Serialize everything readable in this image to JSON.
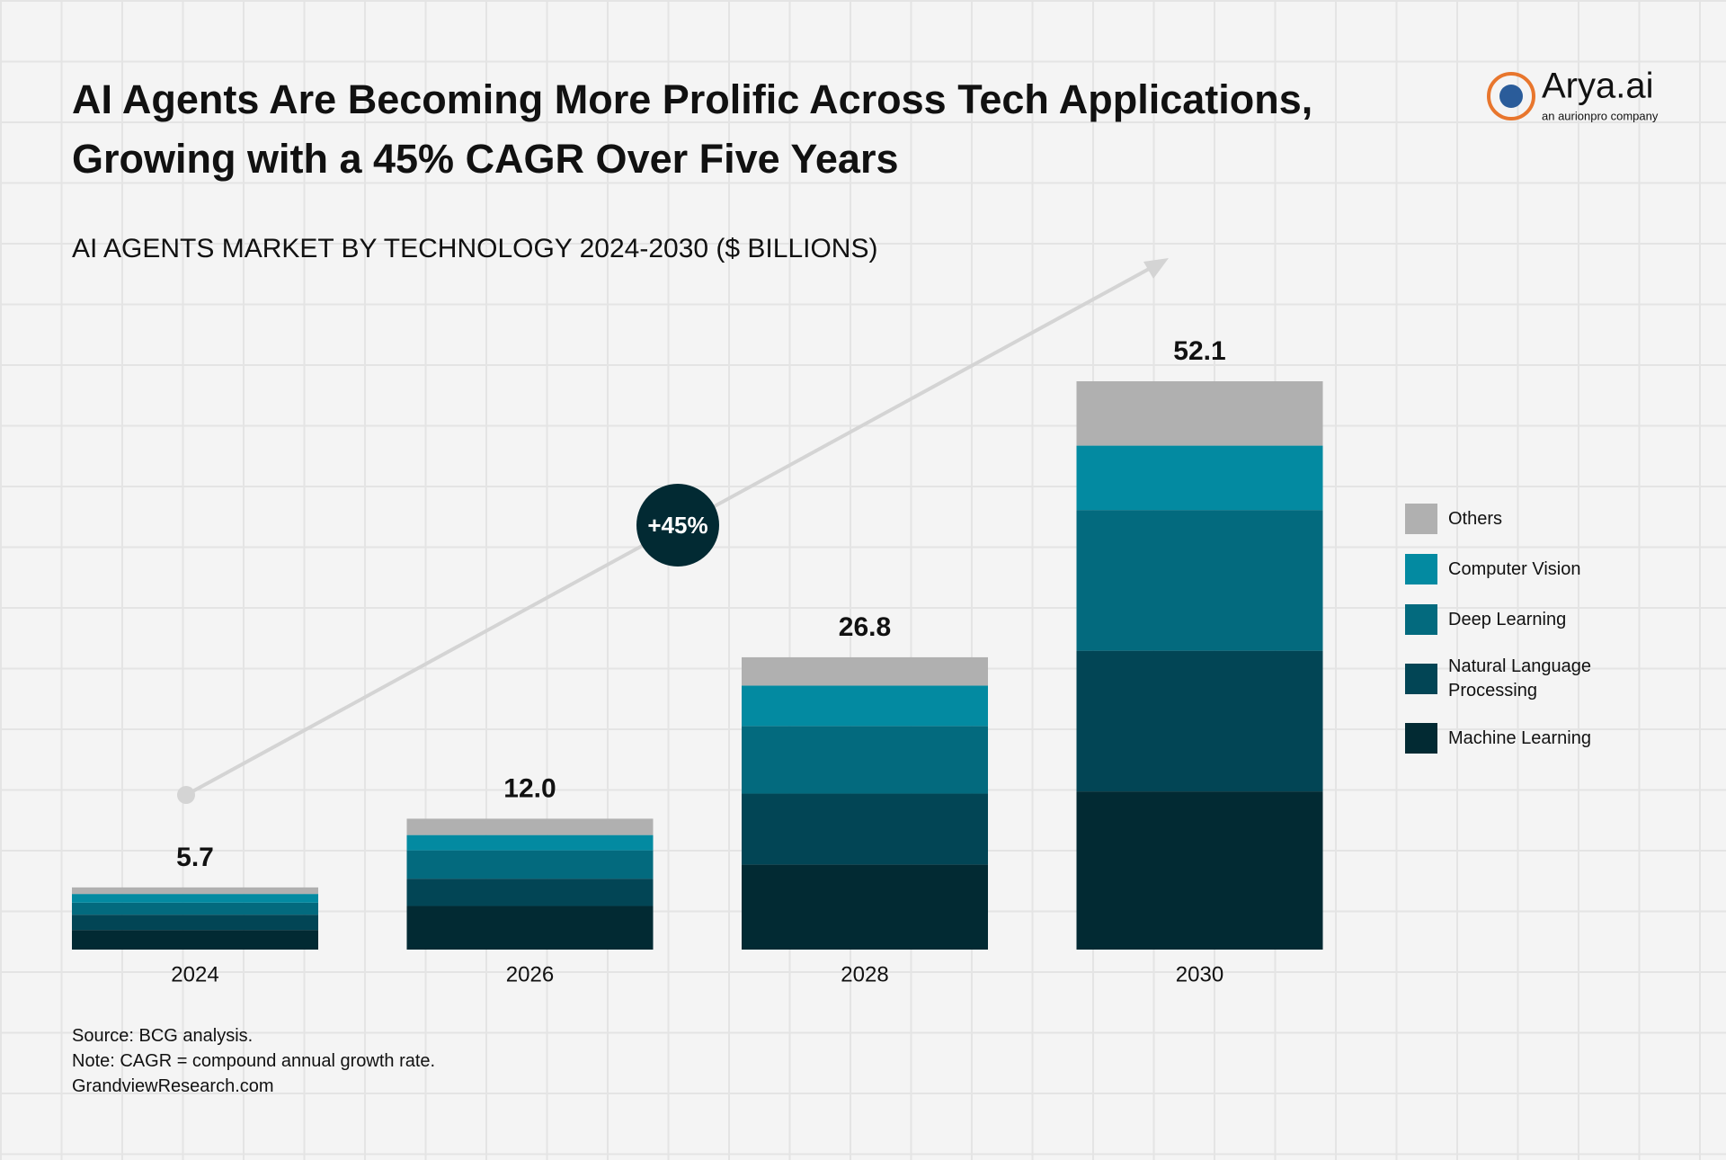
{
  "chart_data": {
    "type": "bar",
    "stacked": true,
    "title": [
      "AI Agents Are Becoming More Prolific Across Tech Applications,",
      "Growing with a 45% CAGR Over Five Years"
    ],
    "subtitle": "AI AGENTS MARKET BY TECHNOLOGY 2024-2030 ($ BILLIONS)",
    "categories": [
      "2024",
      "2026",
      "2028",
      "2030"
    ],
    "series": [
      {
        "name": "Machine Learning",
        "color": "#022a33",
        "values": [
          1.8,
          4.0,
          7.8,
          14.5
        ]
      },
      {
        "name": "Natural Language Processing",
        "color": "#024555",
        "values": [
          1.4,
          2.5,
          6.5,
          12.9
        ]
      },
      {
        "name": "Deep Learning",
        "color": "#036a7e",
        "values": [
          1.1,
          2.6,
          6.2,
          12.9
        ]
      },
      {
        "name": "Computer Vision",
        "color": "#038aa1",
        "values": [
          0.8,
          1.4,
          3.7,
          5.9
        ]
      },
      {
        "name": "Others",
        "color": "#b0b0b0",
        "values": [
          0.6,
          1.5,
          2.6,
          5.9
        ]
      }
    ],
    "totals": [
      5.7,
      12,
      26.8,
      52.1
    ],
    "total_labels": [
      "5.7",
      "12.0",
      "26.8",
      "52.1"
    ],
    "annotation": "+45%",
    "notes": [
      "Source: BCG analysis.",
      "Note: CAGR = compound annual growth rate.",
      "GrandviewResearch.com"
    ],
    "logo": {
      "name": "Arya.ai",
      "tagline": "an aurionpro company"
    }
  }
}
